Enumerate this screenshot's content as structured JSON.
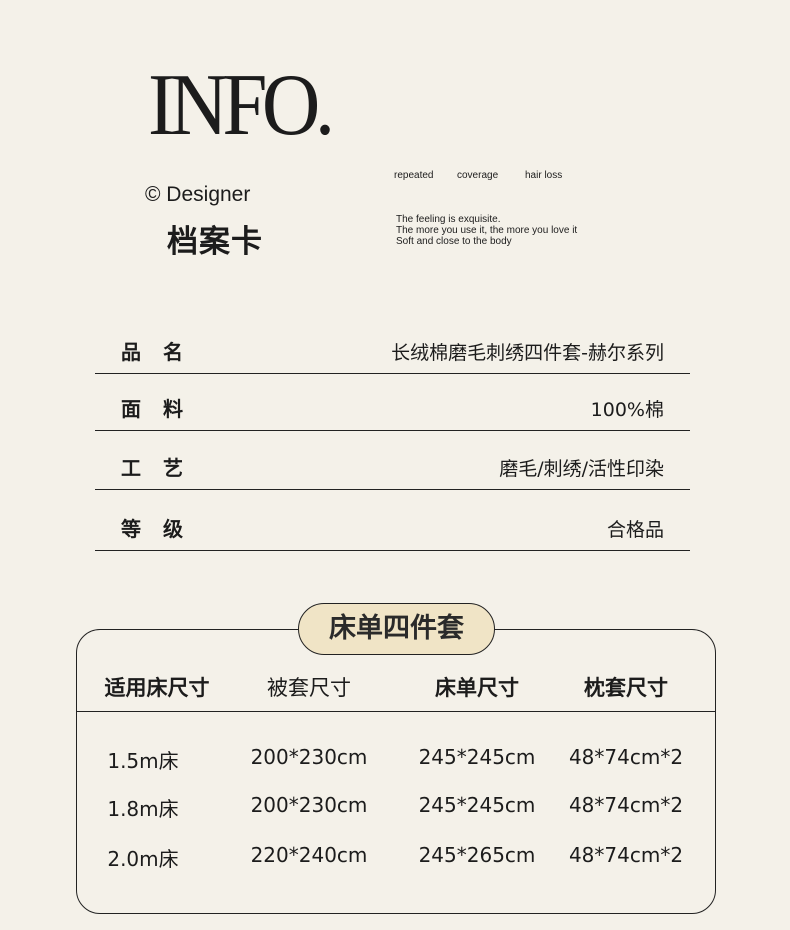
{
  "header": {
    "logo": "INFO.",
    "designer": "© Designer",
    "title": "档案卡",
    "tags": [
      "repeated",
      "coverage",
      "hair loss"
    ],
    "tagline": [
      "The feeling is exquisite.",
      "The more you use it, the more you love it",
      "Soft and close to the body"
    ]
  },
  "info_rows": [
    {
      "label": "品名",
      "value": "长绒棉磨毛刺绣四件套-赫尔系列"
    },
    {
      "label": "面料",
      "value": "100%棉"
    },
    {
      "label": "工艺",
      "value": "磨毛/刺绣/活性印染"
    },
    {
      "label": "等级",
      "value": "合格品"
    }
  ],
  "size_table": {
    "title": "床单四件套",
    "headers": [
      "适用床尺寸",
      "被套尺寸",
      "床单尺寸",
      "枕套尺寸"
    ],
    "rows": [
      [
        "1.5m床",
        "200*230cm",
        "245*245cm",
        "48*74cm*2"
      ],
      [
        "1.8m床",
        "200*230cm",
        "245*245cm",
        "48*74cm*2"
      ],
      [
        "2.0m床",
        "220*240cm",
        "245*265cm",
        "48*74cm*2"
      ]
    ]
  },
  "colors": {
    "background": "#f4f1e9",
    "pill": "#f0e4c6",
    "text": "#1c1c1c"
  }
}
